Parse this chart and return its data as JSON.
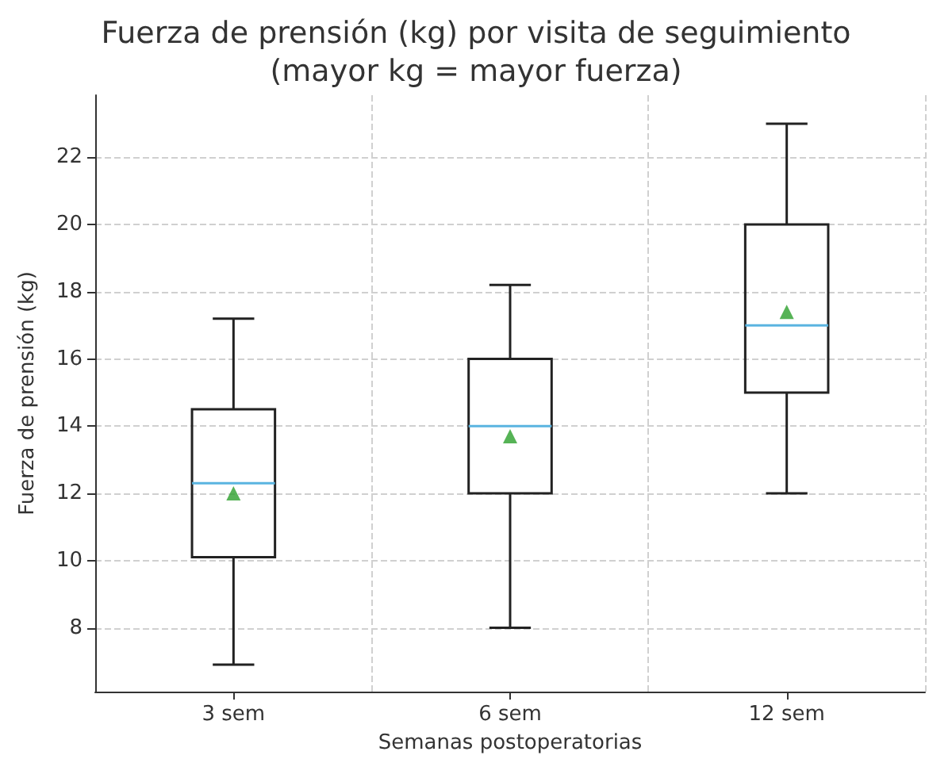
{
  "chart_data": {
    "type": "box",
    "title": "Fuerza de prensión (kg) por visita de seguimiento\n(mayor kg = mayor fuerza)",
    "xlabel": "Semanas postoperatorias",
    "ylabel": "Fuerza de prensión (kg)",
    "categories": [
      "3 sem",
      "6 sem",
      "12 sem"
    ],
    "series": [
      {
        "color": "#222222",
        "boxes": [
          {
            "low": 6.9,
            "q1": 10.1,
            "median": 12.3,
            "q3": 14.5,
            "high": 17.2
          },
          {
            "low": 8,
            "q1": 12,
            "median": 14,
            "q3": 16,
            "high": 18.2
          },
          {
            "low": 12,
            "q1": 15,
            "median": 17,
            "q3": 20,
            "high": 23
          }
        ]
      },
      {
        "type": "scatter",
        "color": "#2ca02c",
        "marker": "triangle",
        "x": [
          "3 sem",
          "6 sem",
          "12 sem"
        ],
        "values": [
          12.0,
          13.7,
          17.4
        ]
      }
    ],
    "ylim": [
      6.1,
      23.85
    ],
    "yticks": [
      8,
      10,
      12,
      14,
      16,
      18,
      20,
      22
    ],
    "grid": true
  }
}
